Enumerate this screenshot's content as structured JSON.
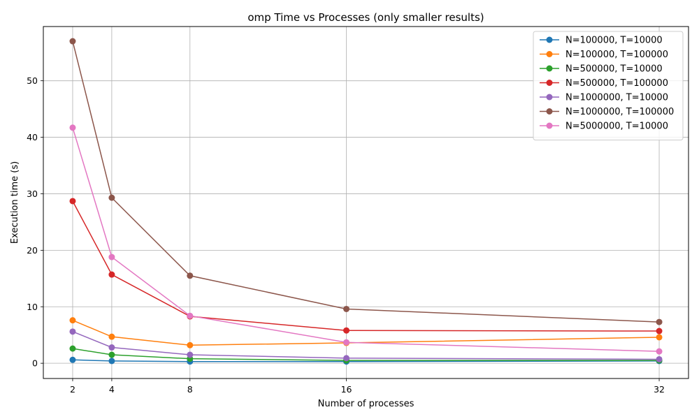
{
  "chart_data": {
    "type": "line",
    "title": "omp Time vs Processes (only smaller results)",
    "xlabel": "Number of processes",
    "ylabel": "Execution time (s)",
    "x": [
      2,
      4,
      8,
      16,
      32
    ],
    "x_ticks": [
      2,
      4,
      8,
      16,
      32
    ],
    "y_ticks": [
      0,
      10,
      20,
      30,
      40,
      50
    ],
    "ylim": [
      -2.7,
      59.6
    ],
    "xlim": [
      0.5,
      33.5
    ],
    "grid": true,
    "legend_position": "top-right",
    "series": [
      {
        "name": "N=100000, T=10000",
        "color": "#1f77b4",
        "values": [
          0.6,
          0.4,
          0.3,
          0.3,
          0.4
        ]
      },
      {
        "name": "N=100000, T=100000",
        "color": "#ff7f0e",
        "values": [
          7.6,
          4.7,
          3.2,
          3.6,
          4.6
        ]
      },
      {
        "name": "N=500000, T=10000",
        "color": "#2ca02c",
        "values": [
          2.6,
          1.5,
          0.8,
          0.5,
          0.5
        ]
      },
      {
        "name": "N=500000, T=100000",
        "color": "#d62728",
        "values": [
          28.7,
          15.7,
          8.3,
          5.8,
          5.7
        ]
      },
      {
        "name": "N=1000000, T=10000",
        "color": "#9467bd",
        "values": [
          5.6,
          2.8,
          1.5,
          0.9,
          0.7
        ]
      },
      {
        "name": "N=1000000, T=100000",
        "color": "#8c564b",
        "values": [
          57.0,
          29.3,
          15.5,
          9.6,
          7.3
        ]
      },
      {
        "name": "N=5000000, T=10000",
        "color": "#e377c2",
        "values": [
          41.7,
          18.8,
          8.4,
          3.7,
          2.1
        ]
      }
    ]
  }
}
